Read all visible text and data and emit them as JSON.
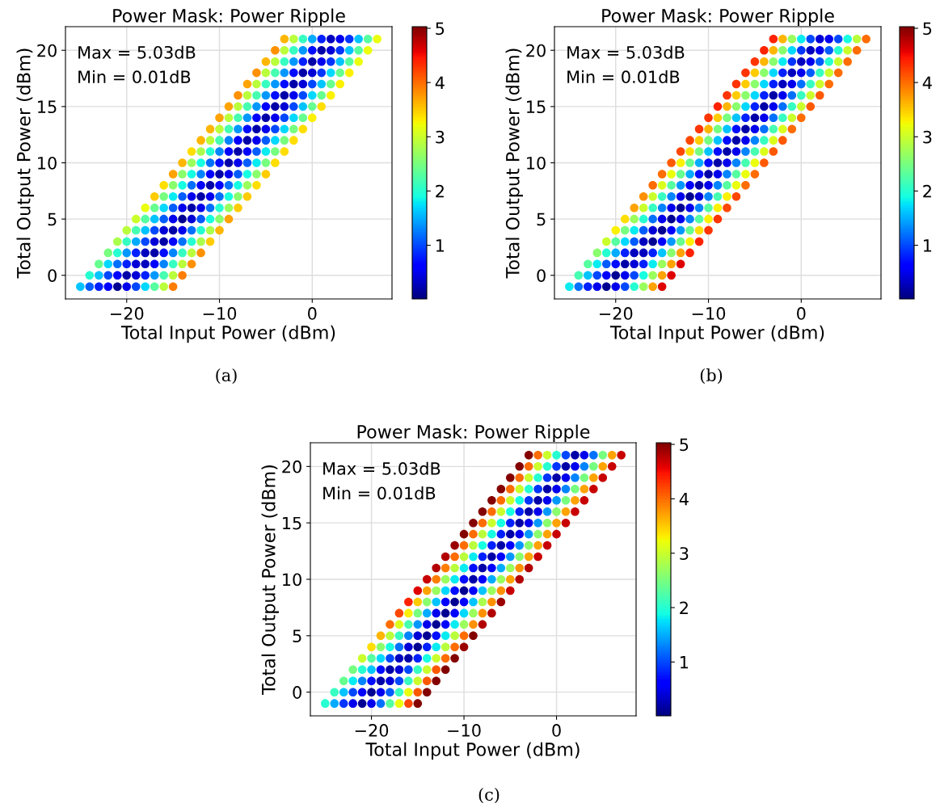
{
  "chart_data": [
    {
      "type": "scatter",
      "title": "Power Mask: Power Ripple",
      "xlabel": "Total Input Power (dBm)",
      "ylabel": "Total Output Power (dBm)",
      "annotations": [
        "Max = 5.03dB",
        "Min = 0.01dB",
        "(a)"
      ],
      "marker": "circle",
      "grid": true,
      "xlim": [
        -26.6,
        8.6
      ],
      "ylim": [
        -2.1,
        22.1
      ],
      "xticks": [
        -20,
        -10,
        0
      ],
      "yticks": [
        0,
        5,
        10,
        15,
        20
      ],
      "clim": [
        0.01,
        5.03
      ],
      "cticks": [
        1,
        2,
        3,
        4,
        5
      ],
      "x": [
        -3,
        -2,
        -1,
        0,
        1,
        2,
        3,
        4,
        5,
        6,
        7,
        -4,
        -3,
        -2,
        -1,
        0,
        1,
        2,
        3,
        4,
        5,
        6,
        -5,
        -4,
        -3,
        -2,
        -1,
        0,
        1,
        2,
        3,
        4,
        5,
        -6,
        -5,
        -4,
        -3,
        -2,
        -1,
        0,
        1,
        2,
        3,
        4,
        -7,
        -6,
        -5,
        -4,
        -3,
        -2,
        -1,
        0,
        1,
        2,
        3,
        -8,
        -7,
        -6,
        -5,
        -4,
        -3,
        -2,
        -1,
        0,
        1,
        2,
        -9,
        -8,
        -7,
        -6,
        -5,
        -4,
        -3,
        -2,
        -1,
        0,
        1,
        -10,
        -9,
        -8,
        -7,
        -6,
        -5,
        -4,
        -3,
        -2,
        -1,
        0,
        -11,
        -10,
        -9,
        -8,
        -7,
        -6,
        -5,
        -4,
        -3,
        -2,
        -1,
        -12,
        -11,
        -10,
        -9,
        -8,
        -7,
        -6,
        -5,
        -4,
        -3,
        -2,
        -13,
        -12,
        -11,
        -10,
        -9,
        -8,
        -7,
        -6,
        -5,
        -4,
        -3,
        -14,
        -13,
        -12,
        -11,
        -10,
        -9,
        -8,
        -7,
        -6,
        -5,
        -4,
        -15,
        -14,
        -13,
        -12,
        -11,
        -10,
        -9,
        -8,
        -7,
        -6,
        -5,
        -16,
        -15,
        -14,
        -13,
        -12,
        -11,
        -10,
        -9,
        -8,
        -7,
        -6,
        -17,
        -16,
        -15,
        -14,
        -13,
        -12,
        -11,
        -10,
        -9,
        -8,
        -7,
        -18,
        -17,
        -16,
        -15,
        -14,
        -13,
        -12,
        -11,
        -10,
        -9,
        -8,
        -19,
        -18,
        -17,
        -16,
        -15,
        -14,
        -13,
        -12,
        -11,
        -10,
        -9,
        -20,
        -19,
        -18,
        -17,
        -16,
        -15,
        -14,
        -13,
        -12,
        -11,
        -10,
        -21,
        -20,
        -19,
        -18,
        -17,
        -16,
        -15,
        -14,
        -13,
        -12,
        -11,
        -22,
        -21,
        -20,
        -19,
        -18,
        -17,
        -16,
        -15,
        -14,
        -13,
        -12,
        -23,
        -22,
        -21,
        -20,
        -19,
        -18,
        -17,
        -16,
        -15,
        -14,
        -13,
        -24,
        -23,
        -22,
        -21,
        -20,
        -19,
        -18,
        -17,
        -16,
        -15,
        -14,
        -25,
        -24,
        -23,
        -22,
        -21,
        -20,
        -19,
        -18,
        -17,
        -16,
        -15
      ],
      "values": [
        21,
        21,
        21,
        21,
        21,
        21,
        21,
        21,
        21,
        21,
        21,
        20,
        20,
        20,
        20,
        20,
        20,
        20,
        20,
        20,
        20,
        20,
        19,
        19,
        19,
        19,
        19,
        19,
        19,
        19,
        19,
        19,
        19,
        18,
        18,
        18,
        18,
        18,
        18,
        18,
        18,
        18,
        18,
        18,
        17,
        17,
        17,
        17,
        17,
        17,
        17,
        17,
        17,
        17,
        17,
        16,
        16,
        16,
        16,
        16,
        16,
        16,
        16,
        16,
        16,
        16,
        15,
        15,
        15,
        15,
        15,
        15,
        15,
        15,
        15,
        15,
        15,
        14,
        14,
        14,
        14,
        14,
        14,
        14,
        14,
        14,
        14,
        14,
        13,
        13,
        13,
        13,
        13,
        13,
        13,
        13,
        13,
        13,
        13,
        12,
        12,
        12,
        12,
        12,
        12,
        12,
        12,
        12,
        12,
        12,
        11,
        11,
        11,
        11,
        11,
        11,
        11,
        11,
        11,
        11,
        11,
        10,
        10,
        10,
        10,
        10,
        10,
        10,
        10,
        10,
        10,
        10,
        9,
        9,
        9,
        9,
        9,
        9,
        9,
        9,
        9,
        9,
        9,
        8,
        8,
        8,
        8,
        8,
        8,
        8,
        8,
        8,
        8,
        8,
        7,
        7,
        7,
        7,
        7,
        7,
        7,
        7,
        7,
        7,
        7,
        6,
        6,
        6,
        6,
        6,
        6,
        6,
        6,
        6,
        6,
        6,
        5,
        5,
        5,
        5,
        5,
        5,
        5,
        5,
        5,
        5,
        5,
        4,
        4,
        4,
        4,
        4,
        4,
        4,
        4,
        4,
        4,
        4,
        3,
        3,
        3,
        3,
        3,
        3,
        3,
        3,
        3,
        3,
        3,
        2,
        2,
        2,
        2,
        2,
        2,
        2,
        2,
        2,
        2,
        2,
        1,
        1,
        1,
        1,
        1,
        1,
        1,
        1,
        1,
        1,
        1,
        0,
        0,
        0,
        0,
        0,
        0,
        0,
        0,
        0,
        0,
        0,
        -1,
        -1,
        -1,
        -1,
        -1,
        -1,
        -1,
        -1,
        -1,
        -1,
        -1
      ],
      "cvalues": [
        3.6,
        2.9,
        2.1,
        1.5,
        0.8,
        0.3,
        0.5,
        0.9,
        1.6,
        2.3,
        3.2,
        3.8,
        2.9,
        2.1,
        1.4,
        0.7,
        0.2,
        0.4,
        0.9,
        1.6,
        2.3,
        3.2,
        3.6,
        2.9,
        2.1,
        1.4,
        0.8,
        0.2,
        0.5,
        0.9,
        1.6,
        2.3,
        3.2,
        3.8,
        2.9,
        2.2,
        1.4,
        0.7,
        0.2,
        0.4,
        0.9,
        1.7,
        2.4,
        3.3,
        3.7,
        2.9,
        2.1,
        1.4,
        0.7,
        0.2,
        0.4,
        1.0,
        1.6,
        2.4,
        3.3,
        3.8,
        2.9,
        2.2,
        1.4,
        0.7,
        0.2,
        0.5,
        1.0,
        1.7,
        2.4,
        3.3,
        3.7,
        2.9,
        2.2,
        1.4,
        0.6,
        0.2,
        0.4,
        1.0,
        1.6,
        2.4,
        3.4,
        3.7,
        2.9,
        2.2,
        1.4,
        0.6,
        0.2,
        0.5,
        1.0,
        1.7,
        2.4,
        3.3,
        3.6,
        2.9,
        2.2,
        1.4,
        0.7,
        0.2,
        0.5,
        1.0,
        1.7,
        2.5,
        3.4,
        3.6,
        2.9,
        2.2,
        1.3,
        0.6,
        0.2,
        0.5,
        1.1,
        1.7,
        2.5,
        3.4,
        3.4,
        2.8,
        2.0,
        1.3,
        0.6,
        0.2,
        0.6,
        1.1,
        1.8,
        2.5,
        3.4,
        3.6,
        2.7,
        1.9,
        1.2,
        0.7,
        0.2,
        0.5,
        1.1,
        1.8,
        2.5,
        3.4,
        3.7,
        2.6,
        1.9,
        1.3,
        0.6,
        0.2,
        0.5,
        1.1,
        1.9,
        2.6,
        3.5,
        3.4,
        2.6,
        1.9,
        1.2,
        0.6,
        0.2,
        0.6,
        1.2,
        1.9,
        2.7,
        3.4,
        3.5,
        2.5,
        1.8,
        1.1,
        0.5,
        0.2,
        0.5,
        1.2,
        1.9,
        2.6,
        3.5,
        3.2,
        2.4,
        1.7,
        1.1,
        0.5,
        0.2,
        0.5,
        1.2,
        2.0,
        2.7,
        3.5,
        3.0,
        2.3,
        1.6,
        1.1,
        0.5,
        0.1,
        0.4,
        1.1,
        1.9,
        2.6,
        3.7,
        2.9,
        2.2,
        1.6,
        1.0,
        0.4,
        0.2,
        0.5,
        1.2,
        2.0,
        2.8,
        3.6,
        2.8,
        2.1,
        1.5,
        1.0,
        0.4,
        0.2,
        0.6,
        1.2,
        2.0,
        2.8,
        3.5,
        2.5,
        2.0,
        1.4,
        0.8,
        0.3,
        0.2,
        0.7,
        1.3,
        2.1,
        2.9,
        3.8,
        2.4,
        1.7,
        1.2,
        0.8,
        0.4,
        0.3,
        0.6,
        1.3,
        2.1,
        2.9,
        3.8,
        2.0,
        1.6,
        1.0,
        0.6,
        0.2,
        0.4,
        0.8,
        1.4,
        2.2,
        2.9,
        3.9,
        1.6,
        1.1,
        0.8,
        0.6,
        0.1,
        0.5,
        1.0,
        1.7,
        2.3,
        2.9,
        3.9
      ]
    },
    {
      "type": "scatter",
      "title": "Power Mask: Power Ripple",
      "xlabel": "Total Input Power (dBm)",
      "ylabel": "Total Output Power (dBm)",
      "annotations": [
        "Max = 5.03dB",
        "Min = 0.01dB",
        "(b)"
      ],
      "marker": "circle",
      "grid": true,
      "xlim": [
        -26.6,
        8.6
      ],
      "ylim": [
        -2.1,
        22.1
      ],
      "xticks": [
        -20,
        -10,
        0
      ],
      "yticks": [
        0,
        5,
        10,
        15,
        20
      ],
      "clim": [
        0.01,
        5.03
      ],
      "cticks": [
        1,
        2,
        3,
        4,
        5
      ],
      "x": [
        -3,
        -2,
        -1,
        0,
        1,
        2,
        3,
        4,
        5,
        6,
        7,
        -4,
        -3,
        -2,
        -1,
        0,
        1,
        2,
        3,
        4,
        5,
        6,
        -5,
        -4,
        -3,
        -2,
        -1,
        0,
        1,
        2,
        3,
        4,
        5,
        -6,
        -5,
        -4,
        -3,
        -2,
        -1,
        0,
        1,
        2,
        3,
        4,
        -7,
        -6,
        -5,
        -4,
        -3,
        -2,
        -1,
        0,
        1,
        2,
        3,
        -8,
        -7,
        -6,
        -5,
        -4,
        -3,
        -2,
        -1,
        0,
        1,
        2,
        -9,
        -8,
        -7,
        -6,
        -5,
        -4,
        -3,
        -2,
        -1,
        0,
        1,
        -10,
        -9,
        -8,
        -7,
        -6,
        -5,
        -4,
        -3,
        -2,
        -1,
        0,
        -11,
        -10,
        -9,
        -8,
        -7,
        -6,
        -5,
        -4,
        -3,
        -2,
        -1,
        -12,
        -11,
        -10,
        -9,
        -8,
        -7,
        -6,
        -5,
        -4,
        -3,
        -2,
        -13,
        -12,
        -11,
        -10,
        -9,
        -8,
        -7,
        -6,
        -5,
        -4,
        -3,
        -14,
        -13,
        -12,
        -11,
        -10,
        -9,
        -8,
        -7,
        -6,
        -5,
        -4,
        -15,
        -14,
        -13,
        -12,
        -11,
        -10,
        -9,
        -8,
        -7,
        -6,
        -5,
        -16,
        -15,
        -14,
        -13,
        -12,
        -11,
        -10,
        -9,
        -8,
        -7,
        -6,
        -17,
        -16,
        -15,
        -14,
        -13,
        -12,
        -11,
        -10,
        -9,
        -8,
        -7,
        -18,
        -17,
        -16,
        -15,
        -14,
        -13,
        -12,
        -11,
        -10,
        -9,
        -8,
        -19,
        -18,
        -17,
        -16,
        -15,
        -14,
        -13,
        -12,
        -11,
        -10,
        -9,
        -20,
        -19,
        -18,
        -17,
        -16,
        -15,
        -14,
        -13,
        -12,
        -11,
        -10,
        -21,
        -20,
        -19,
        -18,
        -17,
        -16,
        -15,
        -14,
        -13,
        -12,
        -11,
        -22,
        -21,
        -20,
        -19,
        -18,
        -17,
        -16,
        -15,
        -14,
        -13,
        -12,
        -23,
        -22,
        -21,
        -20,
        -19,
        -18,
        -17,
        -16,
        -15,
        -14,
        -13,
        -24,
        -23,
        -22,
        -21,
        -20,
        -19,
        -18,
        -17,
        -16,
        -15,
        -14,
        -25,
        -24,
        -23,
        -22,
        -21,
        -20,
        -19,
        -18,
        -17,
        -16,
        -15
      ],
      "values": [
        21,
        21,
        21,
        21,
        21,
        21,
        21,
        21,
        21,
        21,
        21,
        20,
        20,
        20,
        20,
        20,
        20,
        20,
        20,
        20,
        20,
        20,
        19,
        19,
        19,
        19,
        19,
        19,
        19,
        19,
        19,
        19,
        19,
        18,
        18,
        18,
        18,
        18,
        18,
        18,
        18,
        18,
        18,
        18,
        17,
        17,
        17,
        17,
        17,
        17,
        17,
        17,
        17,
        17,
        17,
        16,
        16,
        16,
        16,
        16,
        16,
        16,
        16,
        16,
        16,
        16,
        15,
        15,
        15,
        15,
        15,
        15,
        15,
        15,
        15,
        15,
        15,
        14,
        14,
        14,
        14,
        14,
        14,
        14,
        14,
        14,
        14,
        14,
        13,
        13,
        13,
        13,
        13,
        13,
        13,
        13,
        13,
        13,
        13,
        12,
        12,
        12,
        12,
        12,
        12,
        12,
        12,
        12,
        12,
        12,
        11,
        11,
        11,
        11,
        11,
        11,
        11,
        11,
        11,
        11,
        11,
        10,
        10,
        10,
        10,
        10,
        10,
        10,
        10,
        10,
        10,
        10,
        9,
        9,
        9,
        9,
        9,
        9,
        9,
        9,
        9,
        9,
        9,
        8,
        8,
        8,
        8,
        8,
        8,
        8,
        8,
        8,
        8,
        8,
        7,
        7,
        7,
        7,
        7,
        7,
        7,
        7,
        7,
        7,
        7,
        6,
        6,
        6,
        6,
        6,
        6,
        6,
        6,
        6,
        6,
        6,
        5,
        5,
        5,
        5,
        5,
        5,
        5,
        5,
        5,
        5,
        5,
        4,
        4,
        4,
        4,
        4,
        4,
        4,
        4,
        4,
        4,
        4,
        3,
        3,
        3,
        3,
        3,
        3,
        3,
        3,
        3,
        3,
        3,
        2,
        2,
        2,
        2,
        2,
        2,
        2,
        2,
        2,
        2,
        2,
        1,
        1,
        1,
        1,
        1,
        1,
        1,
        1,
        1,
        1,
        1,
        0,
        0,
        0,
        0,
        0,
        0,
        0,
        0,
        0,
        0,
        0,
        -1,
        -1,
        -1,
        -1,
        -1,
        -1,
        -1,
        -1,
        -1,
        -1,
        -1
      ],
      "cvalues": [
        4.4,
        3.6,
        2.7,
        1.8,
        1.0,
        0.4,
        0.5,
        1.0,
        1.9,
        2.9,
        4.0,
        4.4,
        3.6,
        2.6,
        1.7,
        0.9,
        0.3,
        0.5,
        1.1,
        2.0,
        3.0,
        4.0,
        4.3,
        3.6,
        2.6,
        1.8,
        0.9,
        0.3,
        0.5,
        1.1,
        2.0,
        3.0,
        4.0,
        4.3,
        3.5,
        2.6,
        1.7,
        0.8,
        0.3,
        0.5,
        1.1,
        2.1,
        3.0,
        4.0,
        4.3,
        3.5,
        2.6,
        1.7,
        0.8,
        0.3,
        0.5,
        1.2,
        2.1,
        3.0,
        4.0,
        4.3,
        3.5,
        2.6,
        1.7,
        0.8,
        0.2,
        0.5,
        1.2,
        2.1,
        3.0,
        4.1,
        4.4,
        3.6,
        2.6,
        1.7,
        0.8,
        0.2,
        0.5,
        1.2,
        2.1,
        3.0,
        4.1,
        4.3,
        3.5,
        2.5,
        1.6,
        0.8,
        0.2,
        0.5,
        1.2,
        2.1,
        3.0,
        4.0,
        4.3,
        3.6,
        2.5,
        1.6,
        0.7,
        0.2,
        0.5,
        1.2,
        2.2,
        3.1,
        4.0,
        4.2,
        3.5,
        2.5,
        1.6,
        0.7,
        0.2,
        0.5,
        1.3,
        2.1,
        3.1,
        4.1,
        4.2,
        3.4,
        2.5,
        1.6,
        0.7,
        0.2,
        0.5,
        1.3,
        2.2,
        3.1,
        4.1,
        4.1,
        3.3,
        2.4,
        1.5,
        0.7,
        0.2,
        0.5,
        1.3,
        2.2,
        3.2,
        4.1,
        4.0,
        3.2,
        2.4,
        1.5,
        0.7,
        0.2,
        0.5,
        1.3,
        2.3,
        3.2,
        4.0,
        4.0,
        3.1,
        2.3,
        1.4,
        0.6,
        0.2,
        0.5,
        1.3,
        2.3,
        3.2,
        4.0,
        3.8,
        3.0,
        2.1,
        1.3,
        0.5,
        0.1,
        0.4,
        1.3,
        2.2,
        3.3,
        4.2,
        3.7,
        3.0,
        2.1,
        1.3,
        0.5,
        0.1,
        0.5,
        1.3,
        2.3,
        3.3,
        4.2,
        3.4,
        2.7,
        2.0,
        1.2,
        0.5,
        0.1,
        0.5,
        1.3,
        2.3,
        3.3,
        4.3,
        3.3,
        2.5,
        1.8,
        1.1,
        0.4,
        0.1,
        0.6,
        1.4,
        2.4,
        3.4,
        4.3,
        3.0,
        2.3,
        1.7,
        1.1,
        0.3,
        0.1,
        0.6,
        1.4,
        2.4,
        3.3,
        4.4,
        2.6,
        2.0,
        1.5,
        0.8,
        0.3,
        0.3,
        0.8,
        1.6,
        2.6,
        3.7,
        4.4,
        2.3,
        1.8,
        1.1,
        0.7,
        0.2,
        0.4,
        0.8,
        1.8,
        2.7,
        3.7,
        4.6,
        2.2,
        1.6,
        1.0,
        0.6,
        0.1,
        0.5,
        1.0,
        1.9,
        2.7,
        3.7,
        4.6,
        1.8,
        1.2,
        0.8,
        0.5,
        0.1,
        0.5,
        1.0,
        2.0,
        2.7,
        3.7,
        4.6
      ]
    },
    {
      "type": "scatter",
      "title": "Power Mask: Power Ripple",
      "xlabel": "Total Input Power (dBm)",
      "ylabel": "Total Output Power (dBm)",
      "annotations": [
        "Max = 5.03dB",
        "Min = 0.01dB",
        "(c)"
      ],
      "marker": "circle",
      "grid": true,
      "xlim": [
        -26.6,
        8.6
      ],
      "ylim": [
        -2.1,
        22.1
      ],
      "xticks": [
        -20,
        -10,
        0
      ],
      "yticks": [
        0,
        5,
        10,
        15,
        20
      ],
      "clim": [
        0.01,
        5.03
      ],
      "cticks": [
        1,
        2,
        3,
        4,
        5
      ],
      "x": [
        -3,
        -2,
        -1,
        0,
        1,
        2,
        3,
        4,
        5,
        6,
        7,
        -4,
        -3,
        -2,
        -1,
        0,
        1,
        2,
        3,
        4,
        5,
        6,
        -5,
        -4,
        -3,
        -2,
        -1,
        0,
        1,
        2,
        3,
        4,
        5,
        -6,
        -5,
        -4,
        -3,
        -2,
        -1,
        0,
        1,
        2,
        3,
        4,
        -7,
        -6,
        -5,
        -4,
        -3,
        -2,
        -1,
        0,
        1,
        2,
        3,
        -8,
        -7,
        -6,
        -5,
        -4,
        -3,
        -2,
        -1,
        0,
        1,
        2,
        -9,
        -8,
        -7,
        -6,
        -5,
        -4,
        -3,
        -2,
        -1,
        0,
        1,
        -10,
        -9,
        -8,
        -7,
        -6,
        -5,
        -4,
        -3,
        -2,
        -1,
        0,
        -11,
        -10,
        -9,
        -8,
        -7,
        -6,
        -5,
        -4,
        -3,
        -2,
        -1,
        -12,
        -11,
        -10,
        -9,
        -8,
        -7,
        -6,
        -5,
        -4,
        -3,
        -2,
        -13,
        -12,
        -11,
        -10,
        -9,
        -8,
        -7,
        -6,
        -5,
        -4,
        -3,
        -14,
        -13,
        -12,
        -11,
        -10,
        -9,
        -8,
        -7,
        -6,
        -5,
        -4,
        -15,
        -14,
        -13,
        -12,
        -11,
        -10,
        -9,
        -8,
        -7,
        -6,
        -5,
        -16,
        -15,
        -14,
        -13,
        -12,
        -11,
        -10,
        -9,
        -8,
        -7,
        -6,
        -17,
        -16,
        -15,
        -14,
        -13,
        -12,
        -11,
        -10,
        -9,
        -8,
        -7,
        -18,
        -17,
        -16,
        -15,
        -14,
        -13,
        -12,
        -11,
        -10,
        -9,
        -8,
        -19,
        -18,
        -17,
        -16,
        -15,
        -14,
        -13,
        -12,
        -11,
        -10,
        -9,
        -20,
        -19,
        -18,
        -17,
        -16,
        -15,
        -14,
        -13,
        -12,
        -11,
        -10,
        -21,
        -20,
        -19,
        -18,
        -17,
        -16,
        -15,
        -14,
        -13,
        -12,
        -11,
        -22,
        -21,
        -20,
        -19,
        -18,
        -17,
        -16,
        -15,
        -14,
        -13,
        -12,
        -23,
        -22,
        -21,
        -20,
        -19,
        -18,
        -17,
        -16,
        -15,
        -14,
        -13,
        -24,
        -23,
        -22,
        -21,
        -20,
        -19,
        -18,
        -17,
        -16,
        -15,
        -14,
        -25,
        -24,
        -23,
        -22,
        -21,
        -20,
        -19,
        -18,
        -17,
        -16,
        -15
      ],
      "values": [
        21,
        21,
        21,
        21,
        21,
        21,
        21,
        21,
        21,
        21,
        21,
        20,
        20,
        20,
        20,
        20,
        20,
        20,
        20,
        20,
        20,
        20,
        19,
        19,
        19,
        19,
        19,
        19,
        19,
        19,
        19,
        19,
        19,
        18,
        18,
        18,
        18,
        18,
        18,
        18,
        18,
        18,
        18,
        18,
        17,
        17,
        17,
        17,
        17,
        17,
        17,
        17,
        17,
        17,
        17,
        16,
        16,
        16,
        16,
        16,
        16,
        16,
        16,
        16,
        16,
        16,
        15,
        15,
        15,
        15,
        15,
        15,
        15,
        15,
        15,
        15,
        15,
        14,
        14,
        14,
        14,
        14,
        14,
        14,
        14,
        14,
        14,
        14,
        13,
        13,
        13,
        13,
        13,
        13,
        13,
        13,
        13,
        13,
        13,
        12,
        12,
        12,
        12,
        12,
        12,
        12,
        12,
        12,
        12,
        12,
        11,
        11,
        11,
        11,
        11,
        11,
        11,
        11,
        11,
        11,
        11,
        10,
        10,
        10,
        10,
        10,
        10,
        10,
        10,
        10,
        10,
        10,
        9,
        9,
        9,
        9,
        9,
        9,
        9,
        9,
        9,
        9,
        9,
        8,
        8,
        8,
        8,
        8,
        8,
        8,
        8,
        8,
        8,
        8,
        7,
        7,
        7,
        7,
        7,
        7,
        7,
        7,
        7,
        7,
        7,
        6,
        6,
        6,
        6,
        6,
        6,
        6,
        6,
        6,
        6,
        6,
        5,
        5,
        5,
        5,
        5,
        5,
        5,
        5,
        5,
        5,
        5,
        4,
        4,
        4,
        4,
        4,
        4,
        4,
        4,
        4,
        4,
        4,
        3,
        3,
        3,
        3,
        3,
        3,
        3,
        3,
        3,
        3,
        3,
        2,
        2,
        2,
        2,
        2,
        2,
        2,
        2,
        2,
        2,
        2,
        1,
        1,
        1,
        1,
        1,
        1,
        1,
        1,
        1,
        1,
        1,
        0,
        0,
        0,
        0,
        0,
        0,
        0,
        0,
        0,
        0,
        0,
        -1,
        -1,
        -1,
        -1,
        -1,
        -1,
        -1,
        -1,
        -1,
        -1,
        -1
      ],
      "cvalues": [
        5.0,
        4.0,
        3.0,
        2.0,
        1.0,
        0.2,
        0.5,
        1.2,
        2.5,
        3.7,
        4.7,
        5.0,
        4.0,
        3.0,
        2.0,
        0.9,
        0.2,
        0.5,
        1.3,
        2.5,
        3.7,
        4.7,
        5.0,
        4.0,
        3.0,
        2.0,
        0.9,
        0.2,
        0.5,
        1.3,
        2.5,
        3.7,
        4.7,
        5.0,
        4.0,
        3.0,
        2.0,
        0.9,
        0.2,
        0.5,
        1.3,
        2.5,
        3.7,
        4.7,
        5.0,
        4.0,
        3.0,
        1.9,
        0.9,
        0.2,
        0.5,
        1.4,
        2.5,
        3.7,
        4.7,
        5.0,
        4.0,
        3.0,
        1.9,
        0.8,
        0.2,
        0.5,
        1.4,
        2.6,
        3.7,
        4.7,
        5.0,
        4.0,
        3.0,
        1.9,
        0.8,
        0.2,
        0.5,
        1.4,
        2.6,
        3.7,
        4.7,
        5.0,
        4.0,
        2.9,
        1.9,
        0.8,
        0.2,
        0.5,
        1.4,
        2.6,
        3.7,
        4.7,
        4.9,
        4.0,
        2.9,
        1.9,
        0.8,
        0.2,
        0.6,
        1.4,
        2.6,
        3.7,
        4.7,
        4.8,
        4.0,
        2.9,
        1.8,
        0.8,
        0.2,
        0.6,
        1.4,
        2.6,
        3.7,
        4.7,
        4.8,
        3.9,
        2.9,
        1.8,
        0.7,
        0.2,
        0.6,
        1.5,
        2.7,
        3.8,
        4.8,
        4.7,
        3.9,
        2.7,
        1.8,
        0.7,
        0.2,
        0.6,
        1.5,
        2.7,
        3.7,
        4.8,
        4.6,
        3.7,
        2.7,
        1.7,
        0.7,
        0.1,
        0.6,
        1.6,
        2.7,
        3.8,
        4.7,
        4.4,
        3.5,
        2.6,
        1.6,
        0.6,
        0.1,
        0.6,
        1.6,
        2.8,
        3.8,
        4.9,
        4.2,
        3.3,
        2.5,
        1.5,
        0.5,
        0.1,
        0.6,
        1.7,
        2.7,
        3.8,
        4.8,
        4.0,
        3.1,
        2.2,
        1.4,
        0.5,
        0.1,
        0.6,
        1.8,
        2.7,
        3.8,
        4.8,
        3.6,
        2.9,
        2.1,
        1.3,
        0.4,
        0.1,
        0.7,
        1.8,
        2.9,
        4.0,
        5.0,
        3.4,
        2.6,
        1.9,
        1.2,
        0.4,
        0.1,
        0.8,
        1.8,
        2.9,
        4.0,
        4.9,
        3.0,
        2.3,
        1.7,
        1.0,
        0.3,
        0.2,
        0.8,
        1.9,
        3.0,
        4.0,
        5.0,
        2.5,
        2.0,
        1.6,
        0.7,
        0.2,
        0.4,
        1.0,
        2.1,
        3.0,
        4.1,
        5.0,
        2.4,
        1.8,
        1.3,
        0.7,
        0.2,
        0.4,
        1.0,
        2.1,
        3.0,
        4.1,
        5.0,
        2.1,
        1.6,
        1.0,
        0.6,
        0.1,
        0.5,
        1.1,
        2.1,
        3.2,
        4.1,
        5.0,
        2.0,
        1.5,
        0.9,
        0.5,
        0.1,
        0.5,
        1.2,
        2.3,
        3.2,
        4.2,
        5.0
      ]
    }
  ]
}
